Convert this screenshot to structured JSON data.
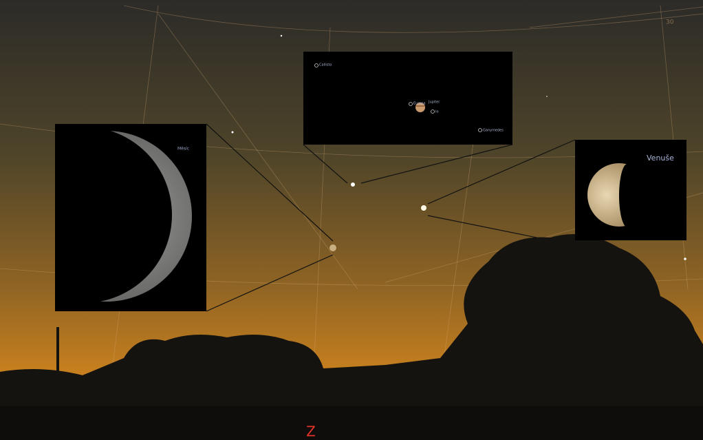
{
  "moon_inset": {
    "label": "Měsíc"
  },
  "venus_inset": {
    "label": "Venuše"
  },
  "jupiter_inset": {
    "moons": [
      "Callisto",
      "Europa",
      "Io",
      "Ganymedes"
    ],
    "planet": "Jupiter"
  },
  "compass": "Z",
  "grid_label": "30"
}
